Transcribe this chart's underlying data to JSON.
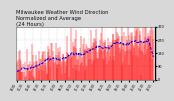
{
  "title_line1": "Milwaukee Weather Wind Direction",
  "title_line2": "Normalized and Average",
  "title_line3": "(24 Hours)",
  "bg_color": "#d8d8d8",
  "plot_bg_color": "#ffffff",
  "bar_color": "#ff0000",
  "avg_color": "#0000ee",
  "grid_color": "#bbbbbb",
  "n_points": 288,
  "y_min": 0,
  "y_max": 360,
  "y_ticks": [
    0,
    90,
    180,
    270,
    360
  ],
  "title_fontsize": 3.8,
  "avg_linewidth": 0.7,
  "bar_linewidth": 0.35,
  "seed": 42
}
